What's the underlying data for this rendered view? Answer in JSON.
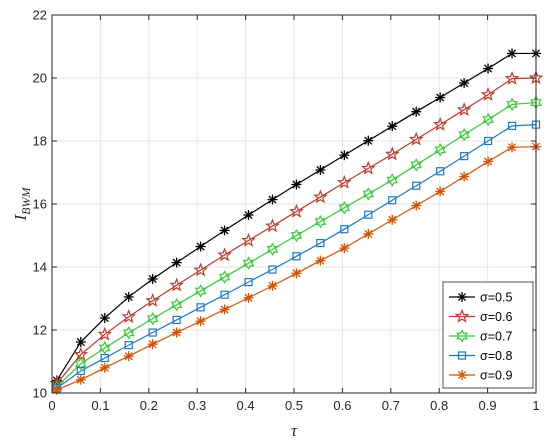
{
  "chart_data": {
    "type": "line",
    "title": "",
    "xlabel": "τ",
    "ylabel_main": "I",
    "ylabel_sub": "BWM",
    "xlim": [
      0,
      1
    ],
    "ylim": [
      10,
      22
    ],
    "xticks": [
      0,
      0.1,
      0.2,
      0.3,
      0.4,
      0.5,
      0.6,
      0.7,
      0.8,
      0.9,
      1
    ],
    "xtick_labels": [
      "0",
      "0.1",
      "0.2",
      "0.3",
      "0.4",
      "0.5",
      "0.6",
      "0.7",
      "0.8",
      "0.9",
      "1"
    ],
    "yticks": [
      10,
      12,
      14,
      16,
      18,
      20,
      22
    ],
    "ytick_labels": [
      "10",
      "12",
      "14",
      "16",
      "18",
      "20",
      "22"
    ],
    "grid": true,
    "legend_position": "bottom-right",
    "x": [
      0.01,
      0.0595,
      0.109,
      0.1585,
      0.208,
      0.2575,
      0.307,
      0.3565,
      0.406,
      0.4555,
      0.505,
      0.5545,
      0.604,
      0.6535,
      0.703,
      0.7525,
      0.802,
      0.8515,
      0.901,
      0.9505,
      1.0
    ],
    "series": [
      {
        "name": "σ=0.5",
        "color": "#000000",
        "marker": "asterisk",
        "values": [
          10.4,
          11.62,
          12.38,
          13.05,
          13.62,
          14.14,
          14.65,
          15.16,
          15.65,
          16.14,
          16.62,
          17.08,
          17.55,
          18.01,
          18.47,
          18.93,
          19.38,
          19.84,
          20.3,
          20.78,
          20.78
        ]
      },
      {
        "name": "σ=0.6",
        "color": "#c0392b",
        "marker": "star",
        "values": [
          10.3,
          11.22,
          11.86,
          12.42,
          12.93,
          13.42,
          13.9,
          14.38,
          14.84,
          15.3,
          15.76,
          16.22,
          16.68,
          17.13,
          17.58,
          18.05,
          18.52,
          18.99,
          19.47,
          19.98,
          20.0
        ]
      },
      {
        "name": "σ=0.7",
        "color": "#32cd32",
        "marker": "hexagram",
        "values": [
          10.2,
          10.93,
          11.43,
          11.91,
          12.36,
          12.8,
          13.24,
          13.68,
          14.12,
          14.56,
          15.0,
          15.44,
          15.88,
          16.32,
          16.76,
          17.24,
          17.72,
          18.2,
          18.68,
          19.16,
          19.22
        ]
      },
      {
        "name": "σ=0.8",
        "color": "#1f77c8",
        "marker": "square",
        "values": [
          10.15,
          10.7,
          11.11,
          11.52,
          11.92,
          12.32,
          12.72,
          13.12,
          13.52,
          13.92,
          14.34,
          14.76,
          15.2,
          15.66,
          16.12,
          16.58,
          17.04,
          17.52,
          18.0,
          18.48,
          18.52
        ]
      },
      {
        "name": "σ=0.9",
        "color": "#d35400",
        "marker": "asterisk",
        "values": [
          10.1,
          10.42,
          10.8,
          11.17,
          11.55,
          11.92,
          12.28,
          12.65,
          13.02,
          13.4,
          13.8,
          14.2,
          14.6,
          15.05,
          15.5,
          15.95,
          16.4,
          16.87,
          17.35,
          17.8,
          17.82
        ]
      }
    ]
  }
}
